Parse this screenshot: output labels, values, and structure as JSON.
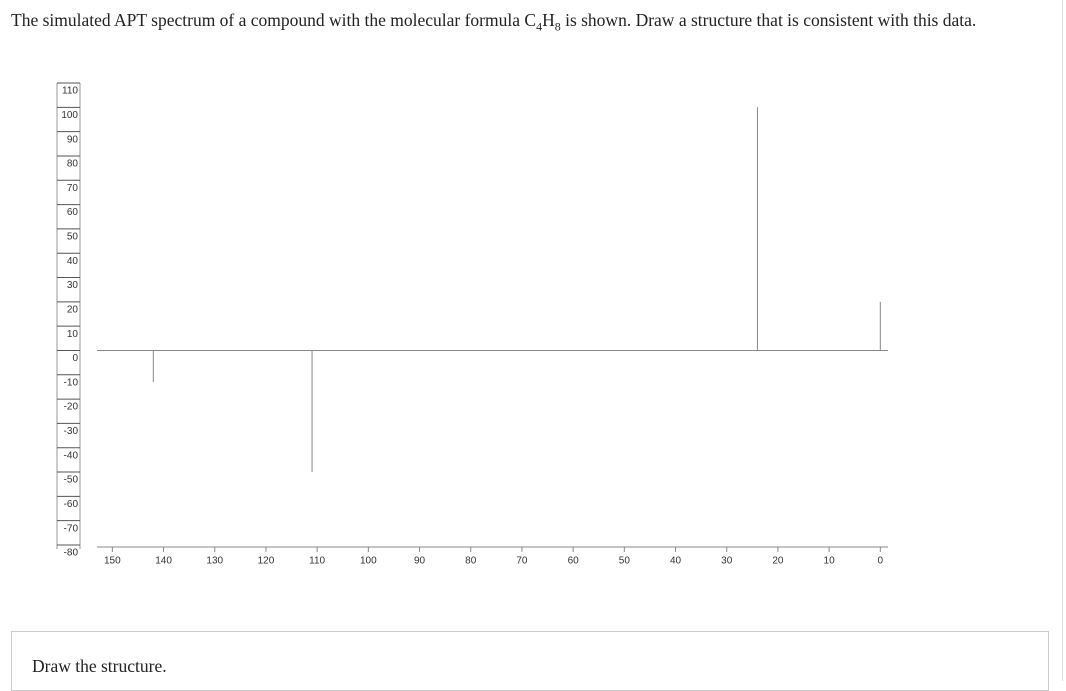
{
  "question": {
    "text1": "The simulated APT spectrum of a compound with the molecular formula C",
    "sub1": "4",
    "text2": "H",
    "sub2": "8",
    "text3": " is shown. Draw a structure that is consistent with this data."
  },
  "chart_data": {
    "type": "stem",
    "x": [
      142,
      111,
      24,
      0
    ],
    "series": [
      {
        "values": [
          -13,
          -50,
          100,
          20
        ],
        "color": "#888888"
      }
    ],
    "xlim": [
      153,
      -1.5
    ],
    "xticks": [
      150,
      140,
      130,
      120,
      110,
      100,
      90,
      80,
      70,
      60,
      50,
      40,
      30,
      20,
      10,
      0
    ],
    "ylim": [
      -80,
      110
    ],
    "yticks": [
      110,
      100,
      90,
      80,
      70,
      60,
      50,
      40,
      30,
      20,
      10,
      0,
      -10,
      -20,
      -30,
      -40,
      -50,
      -60,
      -70,
      -80
    ]
  },
  "answer": {
    "label": "Draw the structure."
  }
}
